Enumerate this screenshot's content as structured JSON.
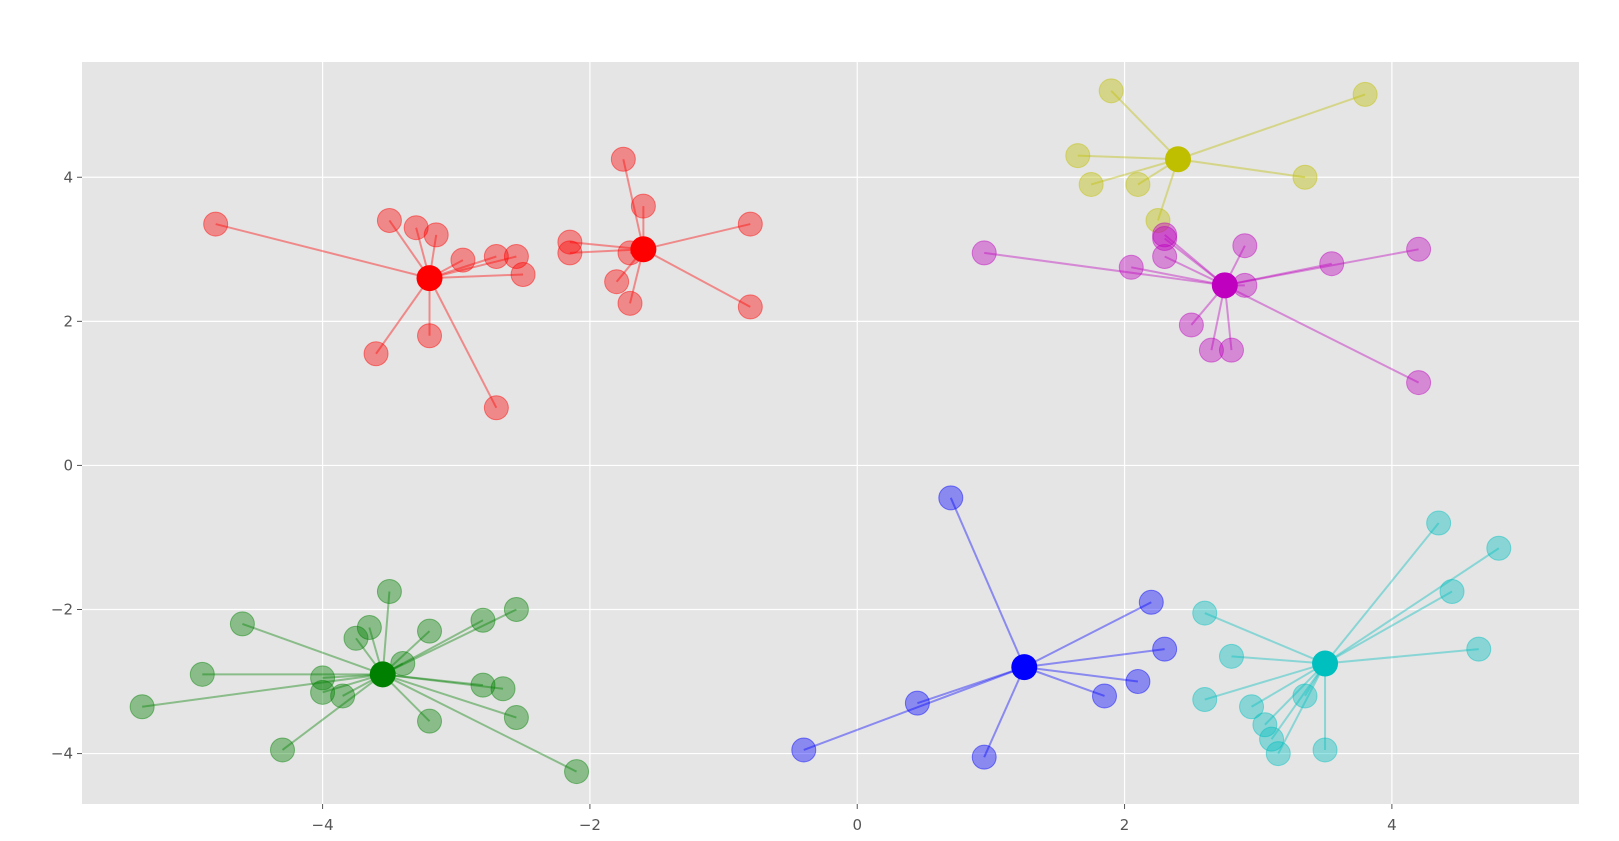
{
  "chart_data": {
    "type": "scatter",
    "title": "",
    "xlabel": "",
    "ylabel": "",
    "xlim": [
      -5.8,
      5.4
    ],
    "ylim": [
      -4.7,
      5.6
    ],
    "xticks": [
      -4,
      -2,
      0,
      2,
      4
    ],
    "yticks": [
      -4,
      -2,
      0,
      2,
      4
    ],
    "xtick_labels": [
      "−4",
      "−2",
      "0",
      "2",
      "4"
    ],
    "ytick_labels": [
      "−4",
      "−2",
      "0",
      "2",
      "4"
    ],
    "grid": true,
    "legend": "none",
    "clusters": [
      {
        "color": "#ff0000",
        "center": [
          -3.2,
          2.6
        ],
        "points": [
          [
            -4.8,
            3.35
          ],
          [
            -3.5,
            3.4
          ],
          [
            -3.3,
            3.3
          ],
          [
            -3.15,
            3.2
          ],
          [
            -2.95,
            2.85
          ],
          [
            -2.7,
            2.9
          ],
          [
            -2.55,
            2.9
          ],
          [
            -2.5,
            2.65
          ],
          [
            -3.2,
            1.8
          ],
          [
            -3.6,
            1.55
          ],
          [
            -2.7,
            0.8
          ]
        ]
      },
      {
        "color": "#ff0000",
        "center": [
          -1.6,
          3.0
        ],
        "points": [
          [
            -1.75,
            4.25
          ],
          [
            -1.6,
            3.6
          ],
          [
            -2.15,
            3.1
          ],
          [
            -2.15,
            2.95
          ],
          [
            -1.7,
            2.95
          ],
          [
            -1.8,
            2.55
          ],
          [
            -1.7,
            2.25
          ],
          [
            -0.8,
            3.35
          ],
          [
            -0.8,
            2.2
          ]
        ]
      },
      {
        "color": "#bfbf00",
        "center": [
          2.4,
          4.25
        ],
        "points": [
          [
            1.9,
            5.2
          ],
          [
            3.8,
            5.15
          ],
          [
            1.65,
            4.3
          ],
          [
            1.75,
            3.9
          ],
          [
            2.1,
            3.9
          ],
          [
            3.35,
            4.0
          ],
          [
            2.25,
            3.4
          ]
        ]
      },
      {
        "color": "#bf00bf",
        "center": [
          2.75,
          2.5
        ],
        "points": [
          [
            0.95,
            2.95
          ],
          [
            2.05,
            2.75
          ],
          [
            2.3,
            3.2
          ],
          [
            2.3,
            3.15
          ],
          [
            2.3,
            2.9
          ],
          [
            2.9,
            3.05
          ],
          [
            2.9,
            2.5
          ],
          [
            3.55,
            2.8
          ],
          [
            4.2,
            3.0
          ],
          [
            2.5,
            1.95
          ],
          [
            2.65,
            1.6
          ],
          [
            2.8,
            1.6
          ],
          [
            4.2,
            1.15
          ]
        ]
      },
      {
        "color": "#008000",
        "center": [
          -3.55,
          -2.9
        ],
        "points": [
          [
            -5.35,
            -3.35
          ],
          [
            -4.9,
            -2.9
          ],
          [
            -4.6,
            -2.2
          ],
          [
            -4.0,
            -2.95
          ],
          [
            -4.0,
            -3.15
          ],
          [
            -3.85,
            -3.2
          ],
          [
            -3.75,
            -2.4
          ],
          [
            -3.65,
            -2.25
          ],
          [
            -3.5,
            -1.75
          ],
          [
            -3.4,
            -2.75
          ],
          [
            -3.2,
            -2.3
          ],
          [
            -3.2,
            -3.55
          ],
          [
            -2.8,
            -2.15
          ],
          [
            -2.8,
            -3.05
          ],
          [
            -2.65,
            -3.1
          ],
          [
            -2.55,
            -2.0
          ],
          [
            -2.55,
            -3.5
          ],
          [
            -4.3,
            -3.95
          ],
          [
            -2.1,
            -4.25
          ]
        ]
      },
      {
        "color": "#0000ff",
        "center": [
          1.25,
          -2.8
        ],
        "points": [
          [
            0.7,
            -0.45
          ],
          [
            2.2,
            -1.9
          ],
          [
            2.3,
            -2.55
          ],
          [
            2.1,
            -3.0
          ],
          [
            1.85,
            -3.2
          ],
          [
            0.45,
            -3.3
          ],
          [
            -0.4,
            -3.95
          ],
          [
            0.95,
            -4.05
          ]
        ]
      },
      {
        "color": "#00bfbf",
        "center": [
          3.5,
          -2.75
        ],
        "points": [
          [
            4.35,
            -0.8
          ],
          [
            4.8,
            -1.15
          ],
          [
            4.45,
            -1.75
          ],
          [
            4.65,
            -2.55
          ],
          [
            2.6,
            -2.05
          ],
          [
            2.8,
            -2.65
          ],
          [
            2.6,
            -3.25
          ],
          [
            2.95,
            -3.35
          ],
          [
            3.05,
            -3.6
          ],
          [
            3.1,
            -3.8
          ],
          [
            3.15,
            -4.0
          ],
          [
            3.35,
            -3.2
          ],
          [
            3.5,
            -3.95
          ]
        ]
      }
    ]
  }
}
